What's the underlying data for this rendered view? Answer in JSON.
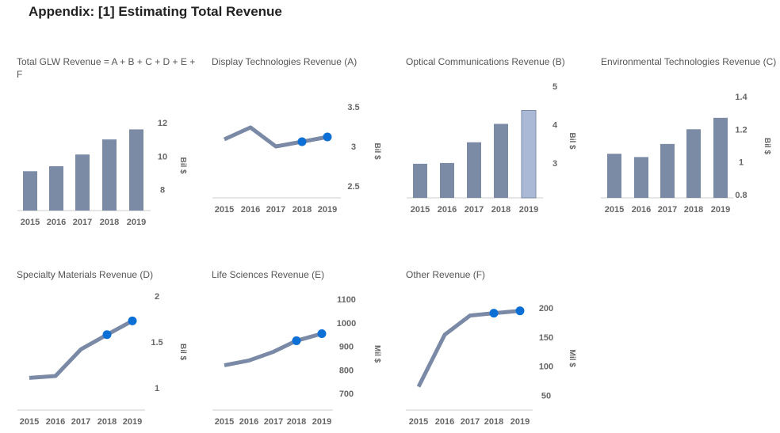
{
  "header": {
    "title": "Appendix: [1] Estimating Total Revenue"
  },
  "colors": {
    "bar": "#7b8ba5",
    "bar_highlight": "#a9b9d6",
    "line": "#7a8aa6",
    "marker": "#0b6fd6",
    "axis": "#cccccc"
  },
  "chart_data": [
    {
      "type": "bar",
      "title": "Total GLW Revenue = A + B + C + D + E + F",
      "unit": "Bil $",
      "categories": [
        "2015",
        "2016",
        "2017",
        "2018",
        "2019"
      ],
      "values": [
        9.1,
        9.4,
        10.1,
        11.0,
        11.6
      ],
      "yticks": [
        8,
        10,
        12
      ],
      "ylim": [
        6.75,
        12
      ],
      "highlight": []
    },
    {
      "type": "line",
      "title": "Display Technologies Revenue (A)",
      "unit": "Bil $",
      "categories": [
        "2015",
        "2016",
        "2017",
        "2018",
        "2019"
      ],
      "values": [
        3.09,
        3.24,
        3.0,
        3.06,
        3.12
      ],
      "yticks": [
        2.5,
        3,
        3.5
      ],
      "ylim": [
        2.35,
        3.5
      ],
      "highlight": [
        3,
        4
      ]
    },
    {
      "type": "bar",
      "title": "Optical Communications Revenue (B)",
      "unit": "Bil $",
      "categories": [
        "2015",
        "2016",
        "2017",
        "2018",
        "2019"
      ],
      "values": [
        2.98,
        3.0,
        3.54,
        4.02,
        4.37
      ],
      "yticks": [
        3,
        4,
        5
      ],
      "ylim": [
        2.09,
        5
      ],
      "highlight": [
        4
      ]
    },
    {
      "type": "bar",
      "title": "Environmental Technologies Revenue (C)",
      "unit": "Bil $",
      "categories": [
        "2015",
        "2016",
        "2017",
        "2018",
        "2019"
      ],
      "values": [
        1.05,
        1.03,
        1.11,
        1.2,
        1.27
      ],
      "yticks": [
        0.8,
        1,
        1.2,
        1.4
      ],
      "ylim": [
        0.78,
        1.4
      ],
      "highlight": []
    },
    {
      "type": "line",
      "title": "Specialty Materials Revenue (D)",
      "unit": "Bil $",
      "categories": [
        "2015",
        "2016",
        "2017",
        "2018",
        "2019"
      ],
      "values": [
        1.11,
        1.13,
        1.42,
        1.58,
        1.73
      ],
      "yticks": [
        1,
        1.5,
        2
      ],
      "ylim": [
        0.76,
        2
      ],
      "highlight": [
        3,
        4
      ]
    },
    {
      "type": "line",
      "title": "Life Sciences Revenue (E)",
      "unit": "Mil $",
      "categories": [
        "2015",
        "2016",
        "2017",
        "2018",
        "2019"
      ],
      "values": [
        820,
        840,
        877,
        924,
        954
      ],
      "yticks": [
        700,
        800,
        900,
        1000,
        1100
      ],
      "ylim": [
        630,
        1100
      ],
      "highlight": [
        3,
        4
      ]
    },
    {
      "type": "line",
      "title": "Other Revenue (F)",
      "unit": "Mil $",
      "categories": [
        "2015",
        "2016",
        "2017",
        "2018",
        "2019"
      ],
      "values": [
        65,
        154,
        187,
        191,
        195
      ],
      "yticks": [
        50,
        100,
        150,
        200
      ],
      "ylim": [
        25,
        200
      ],
      "highlight": [
        3,
        4
      ]
    }
  ]
}
